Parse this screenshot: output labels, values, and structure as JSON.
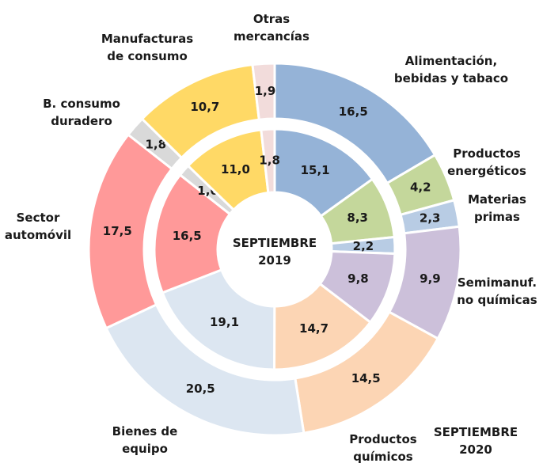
{
  "chart_data": {
    "type": "donut",
    "categories": [
      "Alimentación, bebidas y tabaco",
      "Productos energéticos",
      "Materias primas",
      "Semimanuf. no químicas",
      "Productos químicos",
      "Bienes de equipo",
      "Sector automóvil",
      "B. consumo duradero",
      "Manufacturas de consumo",
      "Otras mercancías"
    ],
    "colors": [
      "#95b3d7",
      "#c4d79b",
      "#b8cce4",
      "#ccc0da",
      "#fcd5b4",
      "#dce6f1",
      "#ff9999",
      "#d9d9d9",
      "#ffd966",
      "#f2dcdb"
    ],
    "series": [
      {
        "name": "SEPTIEMBRE 2019",
        "values": [
          15.1,
          8.3,
          2.2,
          9.8,
          14.7,
          19.1,
          16.5,
          1.6,
          11.0,
          1.8
        ],
        "value_labels": [
          "15,1",
          "8,3",
          "2,2",
          "9,8",
          "14,7",
          "19,1",
          "16,5",
          "1,6",
          "11,0",
          "1,8"
        ]
      },
      {
        "name": "SEPTIEMBRE 2020",
        "values": [
          16.5,
          4.2,
          2.3,
          9.9,
          14.5,
          20.5,
          17.5,
          1.8,
          10.7,
          1.9
        ],
        "value_labels": [
          "16,5",
          "4,2",
          "2,3",
          "9,9",
          "14,5",
          "20,5",
          "17,5",
          "1,8",
          "10,7",
          "1,9"
        ]
      }
    ]
  }
}
